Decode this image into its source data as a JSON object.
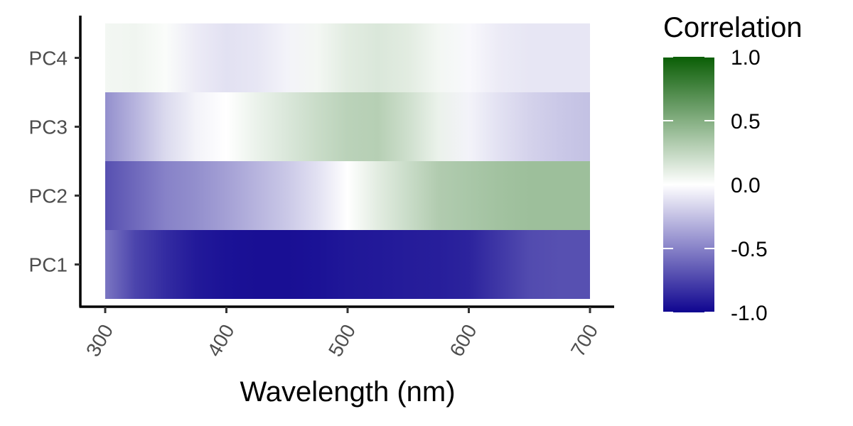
{
  "chart_data": {
    "type": "heatmap",
    "xlabel": "Wavelength (nm)",
    "ylabel": "",
    "xlim": [
      300,
      700
    ],
    "x_ticks": [
      "300",
      "400",
      "500",
      "600",
      "700"
    ],
    "y_categories": [
      "PC1",
      "PC2",
      "PC3",
      "PC4"
    ],
    "wavelengths": [
      300,
      325,
      350,
      375,
      400,
      425,
      450,
      475,
      500,
      525,
      550,
      575,
      600,
      625,
      650,
      675,
      700
    ],
    "series": [
      {
        "category": "PC1",
        "values": [
          -0.55,
          -0.75,
          -0.85,
          -0.92,
          -0.95,
          -0.96,
          -0.96,
          -0.95,
          -0.93,
          -0.92,
          -0.91,
          -0.9,
          -0.88,
          -0.8,
          -0.72,
          -0.7,
          -0.7
        ]
      },
      {
        "category": "PC2",
        "values": [
          -0.7,
          -0.6,
          -0.5,
          -0.45,
          -0.38,
          -0.3,
          -0.22,
          -0.12,
          0.0,
          0.12,
          0.22,
          0.32,
          0.35,
          0.38,
          0.4,
          0.4,
          0.4
        ]
      },
      {
        "category": "PC3",
        "values": [
          -0.45,
          -0.3,
          -0.15,
          -0.05,
          0.0,
          0.08,
          0.15,
          0.22,
          0.28,
          0.3,
          0.2,
          0.08,
          -0.05,
          -0.12,
          -0.18,
          -0.22,
          -0.25
        ]
      },
      {
        "category": "PC4",
        "values": [
          0.05,
          0.06,
          0.02,
          -0.08,
          -0.12,
          -0.1,
          -0.05,
          0.05,
          0.12,
          0.15,
          0.12,
          0.05,
          -0.03,
          -0.08,
          -0.1,
          -0.1,
          -0.1
        ]
      }
    ],
    "colorbar": {
      "title": "Correlation",
      "ticks": [
        "1.0",
        "0.5",
        "0.0",
        "-0.5",
        "-1.0"
      ],
      "range": [
        -1,
        1
      ],
      "low_color": "#0f0590",
      "mid_color": "#ffffff",
      "high_color": "#0a5e05"
    }
  }
}
